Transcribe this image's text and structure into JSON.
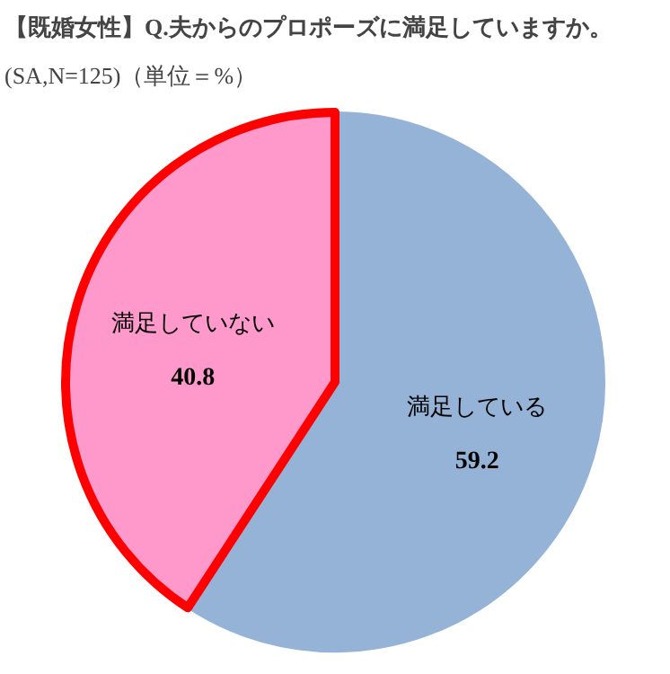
{
  "chart_data": {
    "type": "pie",
    "title": "【既婚女性】Q.夫からのプロポーズに満足していますか。",
    "subtitle": "(SA,N=125)（単位＝%）",
    "categories": [
      "満足している",
      "満足していない"
    ],
    "values": [
      59.2,
      40.8
    ],
    "colors": [
      "#95b3d7",
      "#ff99cc"
    ],
    "data_labels": true
  }
}
